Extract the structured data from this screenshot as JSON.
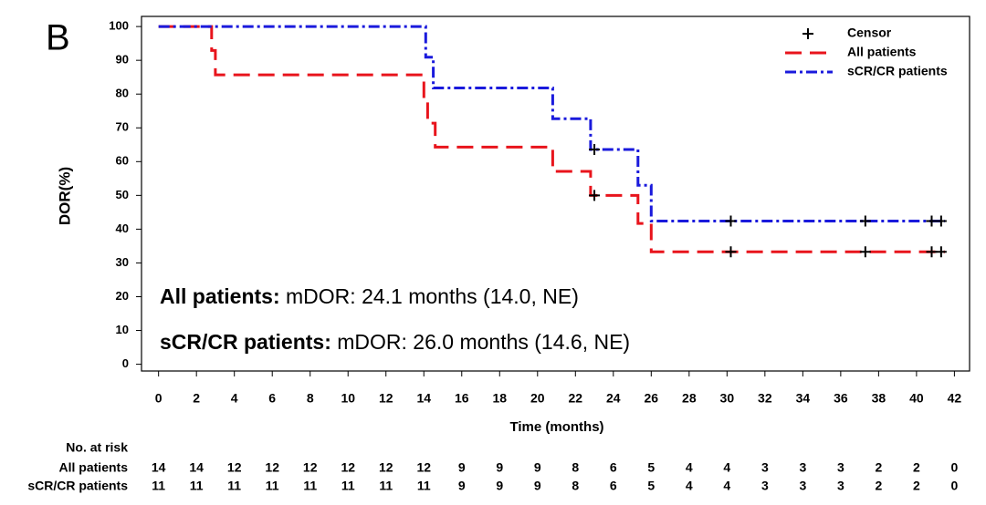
{
  "chart_data": {
    "type": "km",
    "panel_label": "B",
    "x_label": "Time (months)",
    "y_label": "DOR(%)",
    "xlim": [
      -0.9,
      42.8
    ],
    "ylim": [
      -2,
      103
    ],
    "xticks": [
      0,
      2,
      4,
      6,
      8,
      10,
      12,
      14,
      16,
      18,
      20,
      22,
      24,
      26,
      28,
      30,
      32,
      34,
      36,
      38,
      40,
      42
    ],
    "yticks": [
      0,
      10,
      20,
      30,
      40,
      50,
      60,
      70,
      80,
      90,
      100
    ],
    "legend": "top-right",
    "series": [
      {
        "name": "Censor",
        "color": "#000000",
        "marker": "+",
        "x": [
          23.0,
          30.2,
          37.3,
          40.8,
          41.3,
          23.0,
          30.2,
          37.3,
          40.8,
          41.3
        ],
        "values": [
          50,
          33.3,
          33.3,
          33.3,
          33.3,
          63.6,
          42.4,
          42.4,
          42.4,
          42.4
        ]
      },
      {
        "name": "All patients",
        "color": "#e8141c",
        "dash": "18 9",
        "x": [
          0,
          2.8,
          2.8,
          3.0,
          3.0,
          14.0,
          14.0,
          14.2,
          14.2,
          14.6,
          14.6,
          20.8,
          20.8,
          22.8,
          22.8,
          25.3,
          25.3,
          26.0,
          26.0,
          41.5
        ],
        "values": [
          100,
          100,
          92.9,
          92.9,
          85.7,
          85.7,
          78.6,
          78.6,
          71.4,
          71.4,
          64.3,
          64.3,
          57.1,
          57.1,
          50,
          50,
          41.7,
          41.7,
          33.3,
          33.3
        ]
      },
      {
        "name": "sCR/CR patients",
        "color": "#1a1adc",
        "dash": "12 4 3 4",
        "x": [
          0,
          14.1,
          14.1,
          14.5,
          14.5,
          20.8,
          20.8,
          22.8,
          22.8,
          25.3,
          25.3,
          26.0,
          26.0,
          41.5
        ],
        "values": [
          100,
          100,
          90.9,
          90.9,
          81.8,
          81.8,
          72.7,
          72.7,
          63.6,
          63.6,
          53.0,
          53.0,
          42.4,
          42.4
        ]
      }
    ],
    "annotations": [
      {
        "bold": "All patients:",
        "text": " mDOR: 24.1 months (14.0, NE)"
      },
      {
        "bold": "sCR/CR patients:",
        "text": " mDOR: 26.0 months (14.6, NE)"
      }
    ],
    "risk_table": {
      "title": "No. at risk",
      "rows": [
        {
          "name": "All patients",
          "values": [
            14,
            14,
            12,
            12,
            12,
            12,
            12,
            12,
            9,
            9,
            9,
            8,
            6,
            5,
            4,
            4,
            3,
            3,
            3,
            2,
            2,
            0
          ]
        },
        {
          "name": "sCR/CR patients",
          "values": [
            11,
            11,
            11,
            11,
            11,
            11,
            11,
            11,
            9,
            9,
            9,
            8,
            6,
            5,
            4,
            4,
            3,
            3,
            3,
            2,
            2,
            0
          ]
        }
      ]
    }
  }
}
